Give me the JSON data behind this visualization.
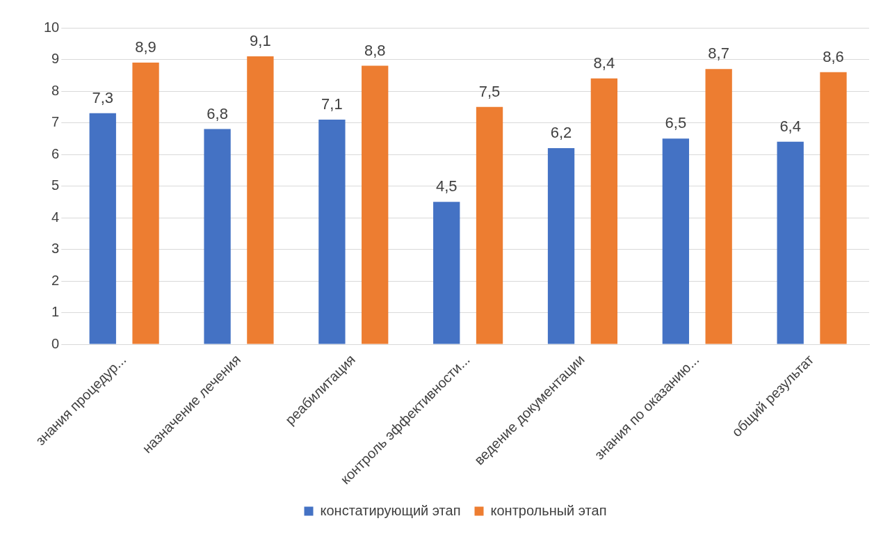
{
  "chart_data": {
    "type": "bar",
    "categories": [
      "знания процедур...",
      "назначение лечения",
      "реабилитация",
      "контроль эффективности...",
      "ведение документации",
      "знания по оказанию...",
      "общий результат"
    ],
    "series": [
      {
        "name": "констатирующий этап",
        "color": "#4472c4",
        "values": [
          7.3,
          6.8,
          7.1,
          4.5,
          6.2,
          6.5,
          6.4
        ],
        "value_labels": [
          "7,3",
          "6,8",
          "7,1",
          "4,5",
          "6,2",
          "6,5",
          "6,4"
        ]
      },
      {
        "name": "контрольный этап",
        "color": "#ed7d31",
        "values": [
          8.9,
          9.1,
          8.8,
          7.5,
          8.4,
          8.7,
          8.6
        ],
        "value_labels": [
          "8,9",
          "9,1",
          "8,8",
          "7,5",
          "8,4",
          "8,7",
          "8,6"
        ]
      }
    ],
    "ylim": [
      0,
      10
    ],
    "yticks": [
      0,
      1,
      2,
      3,
      4,
      5,
      6,
      7,
      8,
      9,
      10
    ],
    "grid": "y",
    "legend": "bottom"
  }
}
